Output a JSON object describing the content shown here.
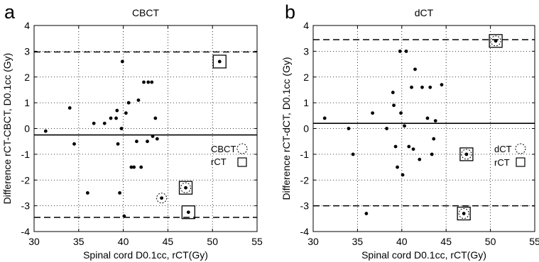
{
  "chart_data": [
    {
      "type": "scatter",
      "panel_label": "a",
      "title": "CBCT",
      "xlabel": "Spinal cord D0.1cc, rCT(Gy)",
      "ylabel": "Difference rCT-CBCT, D0.1cc (Gy)",
      "xlim": [
        30,
        55
      ],
      "ylim": [
        -4,
        4
      ],
      "xticks": [
        "30",
        "35",
        "40",
        "45",
        "50",
        "55"
      ],
      "yticks": [
        "4",
        "3",
        "2",
        "1",
        "0",
        "-1",
        "-2",
        "-3",
        "-4"
      ],
      "grid": true,
      "mean_line": -0.25,
      "limit_lines": [
        2.97,
        -3.45
      ],
      "legend": {
        "placement": "right",
        "entries": [
          {
            "label": "CBCT",
            "marker": "dashed-circle"
          },
          {
            "label": "rCT",
            "marker": "square"
          }
        ]
      },
      "points": [
        {
          "x": 31.3,
          "y": -0.1
        },
        {
          "x": 34.0,
          "y": 0.8
        },
        {
          "x": 34.5,
          "y": -0.6
        },
        {
          "x": 36.0,
          "y": -2.5
        },
        {
          "x": 36.7,
          "y": 0.2
        },
        {
          "x": 37.9,
          "y": 0.2
        },
        {
          "x": 38.6,
          "y": 0.4
        },
        {
          "x": 39.2,
          "y": 0.4
        },
        {
          "x": 39.3,
          "y": 0.7
        },
        {
          "x": 39.4,
          "y": -0.6
        },
        {
          "x": 39.6,
          "y": -2.5
        },
        {
          "x": 39.8,
          "y": 0.0
        },
        {
          "x": 39.9,
          "y": 2.6
        },
        {
          "x": 40.1,
          "y": -3.4
        },
        {
          "x": 40.3,
          "y": 0.6
        },
        {
          "x": 40.6,
          "y": 1.0
        },
        {
          "x": 40.9,
          "y": -1.5
        },
        {
          "x": 41.2,
          "y": -1.5
        },
        {
          "x": 41.5,
          "y": -0.5
        },
        {
          "x": 41.7,
          "y": 1.1
        },
        {
          "x": 42.0,
          "y": -1.5
        },
        {
          "x": 42.3,
          "y": 1.8
        },
        {
          "x": 42.7,
          "y": -0.5
        },
        {
          "x": 42.8,
          "y": 1.8
        },
        {
          "x": 43.2,
          "y": 1.8
        },
        {
          "x": 43.3,
          "y": -0.3
        },
        {
          "x": 43.6,
          "y": 0.4
        },
        {
          "x": 43.8,
          "y": -0.4
        }
      ],
      "cbct_marked": [
        {
          "x": 44.3,
          "y": -2.7
        },
        {
          "x": 47.0,
          "y": -2.3
        }
      ],
      "rct_marked": [
        {
          "x": 47.0,
          "y": -2.3
        },
        {
          "x": 47.3,
          "y": -3.25
        },
        {
          "x": 50.8,
          "y": 2.6
        }
      ]
    },
    {
      "type": "scatter",
      "panel_label": "b",
      "title": "dCT",
      "xlabel": "Spinal cord D0.1cc, rCT(Gy)",
      "ylabel": "Difference rCT-dCT, D0.1cc (Gy)",
      "xlim": [
        30,
        55
      ],
      "ylim": [
        -4,
        4
      ],
      "xticks": [
        "30",
        "35",
        "40",
        "45",
        "50",
        "55"
      ],
      "yticks": [
        "4",
        "3",
        "2",
        "1",
        "0",
        "-1",
        "-2",
        "-3",
        "-4"
      ],
      "grid": true,
      "mean_line": 0.2,
      "limit_lines": [
        3.45,
        -3.0
      ],
      "legend": {
        "placement": "right",
        "entries": [
          {
            "label": "dCT",
            "marker": "dashed-circle"
          },
          {
            "label": "rCT",
            "marker": "square"
          }
        ]
      },
      "points": [
        {
          "x": 31.3,
          "y": 0.4
        },
        {
          "x": 34.0,
          "y": 0.0
        },
        {
          "x": 34.5,
          "y": -1.0
        },
        {
          "x": 36.0,
          "y": -3.3
        },
        {
          "x": 36.7,
          "y": 0.6
        },
        {
          "x": 38.3,
          "y": 0.0
        },
        {
          "x": 39.0,
          "y": 1.4
        },
        {
          "x": 39.1,
          "y": 0.9
        },
        {
          "x": 39.3,
          "y": -0.7
        },
        {
          "x": 39.5,
          "y": -1.5
        },
        {
          "x": 39.8,
          "y": 3.0
        },
        {
          "x": 39.9,
          "y": 0.6
        },
        {
          "x": 40.1,
          "y": -1.8
        },
        {
          "x": 40.3,
          "y": 0.1
        },
        {
          "x": 40.5,
          "y": 3.0
        },
        {
          "x": 40.8,
          "y": -0.7
        },
        {
          "x": 41.1,
          "y": 1.6
        },
        {
          "x": 41.3,
          "y": -0.8
        },
        {
          "x": 41.5,
          "y": 2.3
        },
        {
          "x": 42.0,
          "y": -1.2
        },
        {
          "x": 42.3,
          "y": 1.6
        },
        {
          "x": 42.9,
          "y": 0.4
        },
        {
          "x": 43.2,
          "y": 1.6
        },
        {
          "x": 43.4,
          "y": -1.0
        },
        {
          "x": 43.6,
          "y": -0.4
        },
        {
          "x": 43.8,
          "y": 0.3
        },
        {
          "x": 44.5,
          "y": 1.7
        }
      ],
      "cbct_marked": [
        {
          "x": 47.3,
          "y": -1.0
        },
        {
          "x": 47.0,
          "y": -3.3
        },
        {
          "x": 50.6,
          "y": 3.4
        }
      ],
      "rct_marked": [
        {
          "x": 47.3,
          "y": -1.0
        },
        {
          "x": 47.0,
          "y": -3.3
        },
        {
          "x": 50.6,
          "y": 3.4
        }
      ]
    }
  ]
}
